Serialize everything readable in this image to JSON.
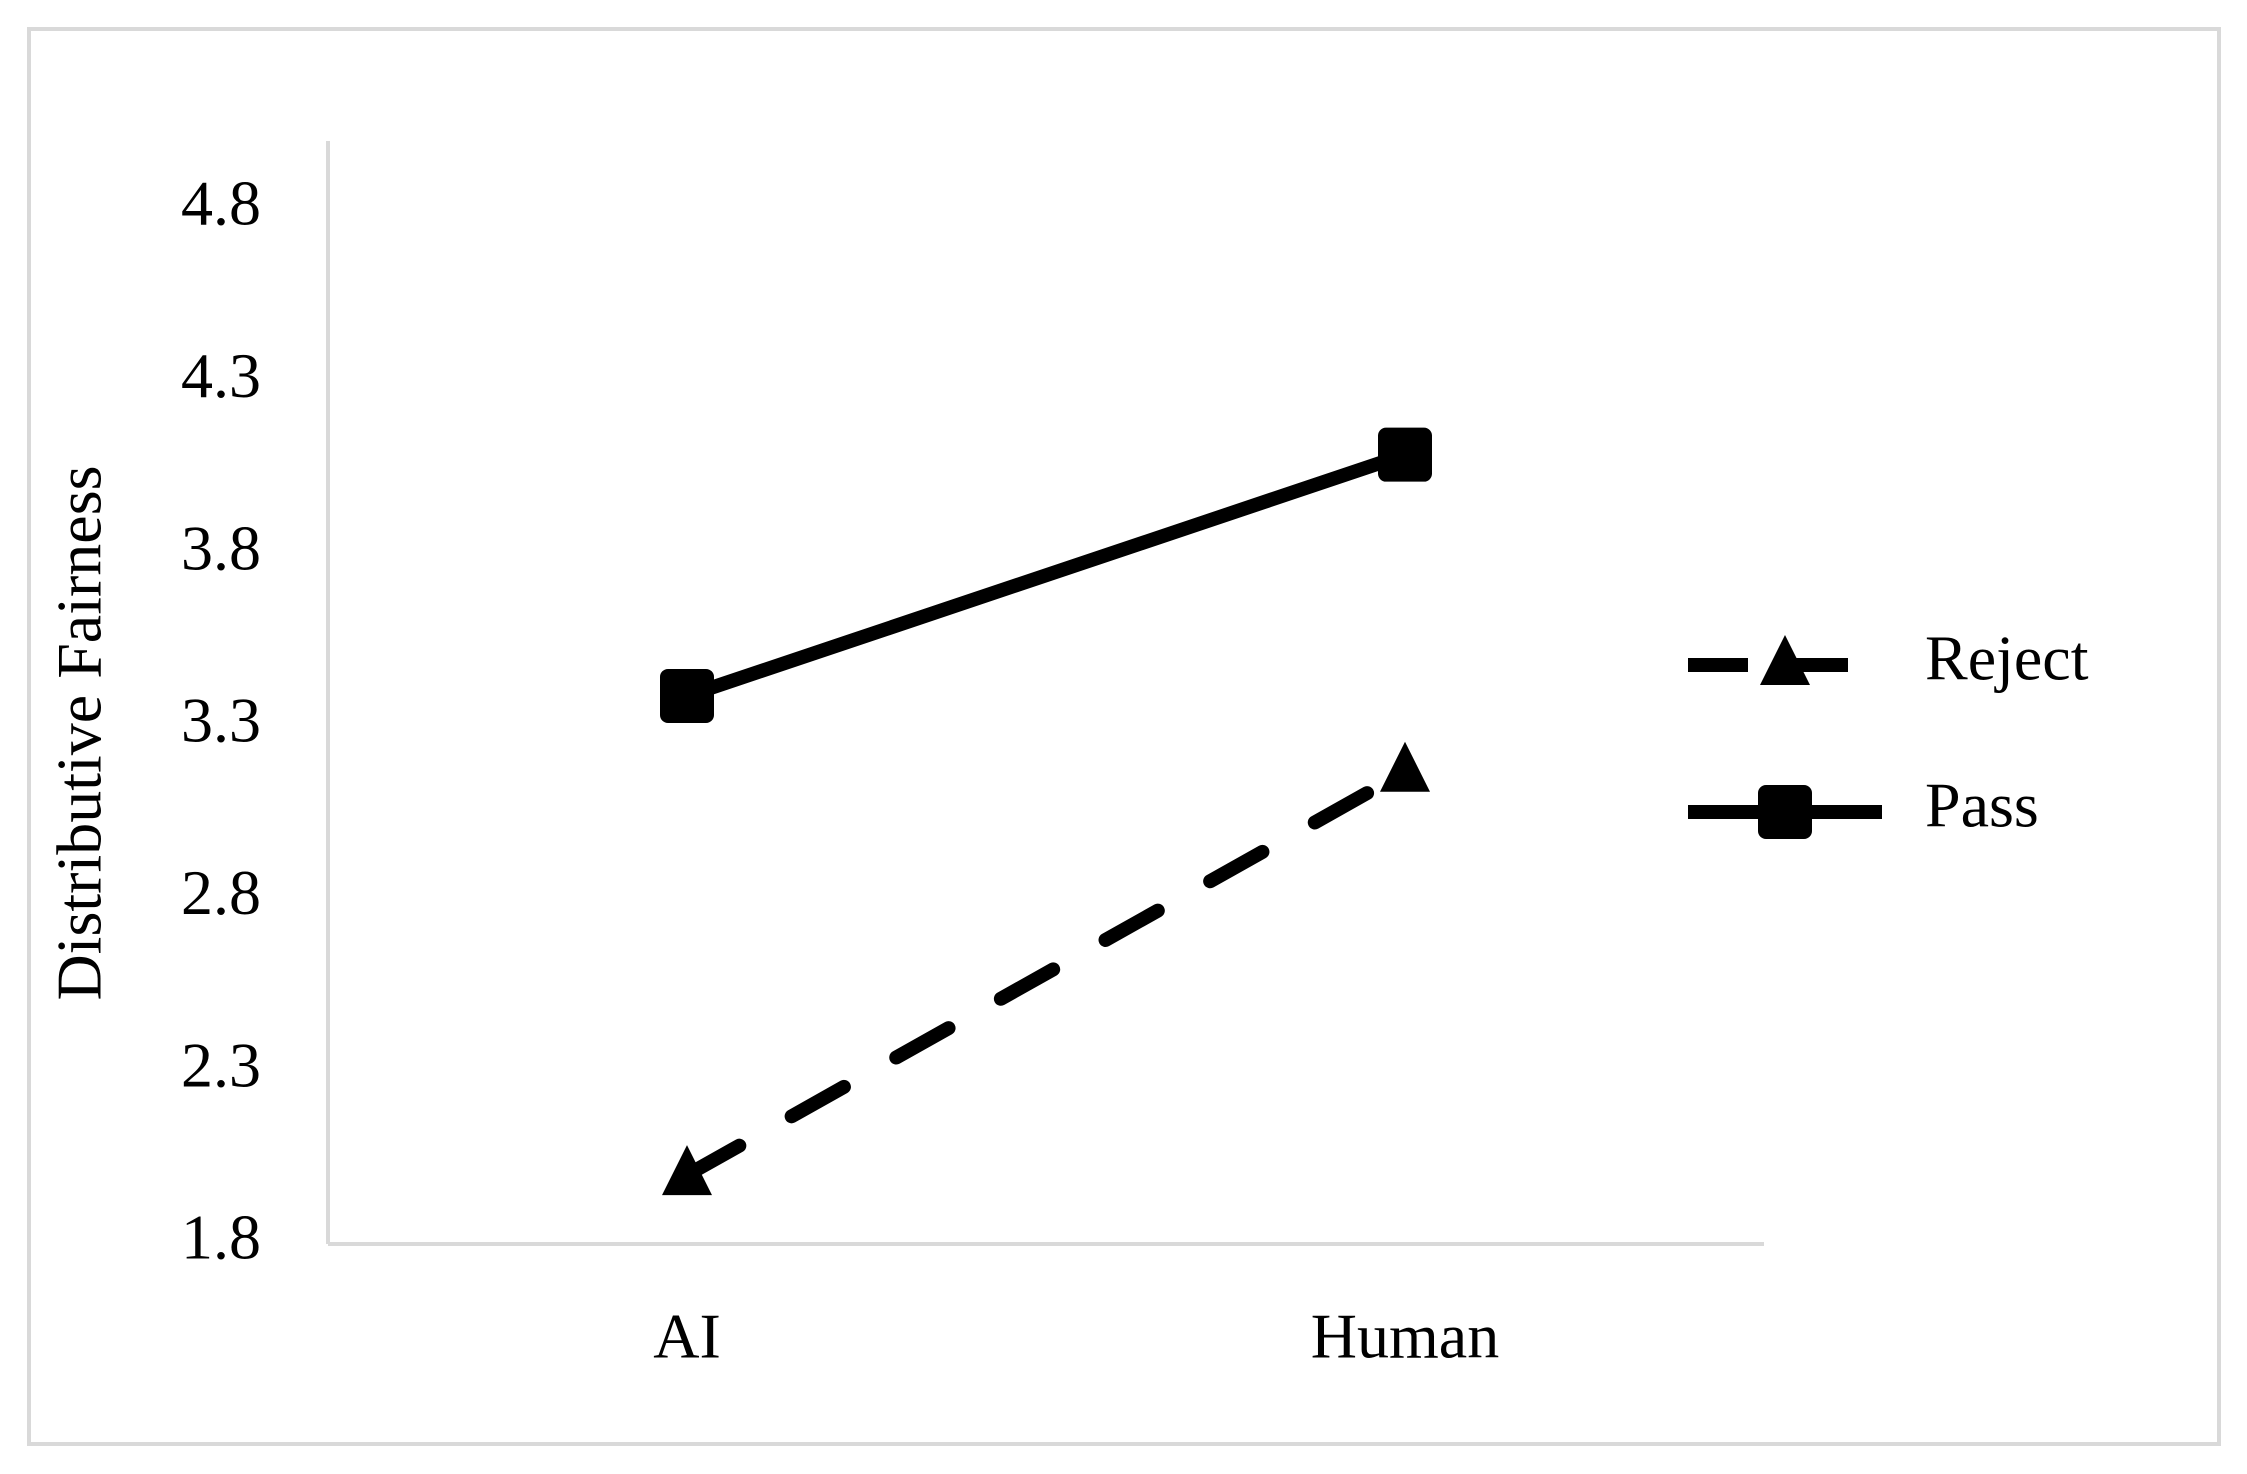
{
  "chart_data": {
    "type": "line",
    "y_label": "Distributive Fairness",
    "categories": [
      "AI",
      "Human"
    ],
    "series": [
      {
        "name": "Reject",
        "color": "#000000",
        "line_style": "dashed",
        "marker": "triangle",
        "values": [
          2.0,
          3.17
        ]
      },
      {
        "name": "Pass",
        "color": "#000000",
        "line_style": "solid",
        "marker": "square",
        "values": [
          3.39,
          4.09
        ]
      }
    ],
    "ylim": [
      1.8,
      5.0
    ],
    "yticks": [
      1.8,
      2.3,
      2.8,
      3.3,
      3.8,
      4.3,
      4.8
    ],
    "grid": false,
    "legend": "right"
  }
}
